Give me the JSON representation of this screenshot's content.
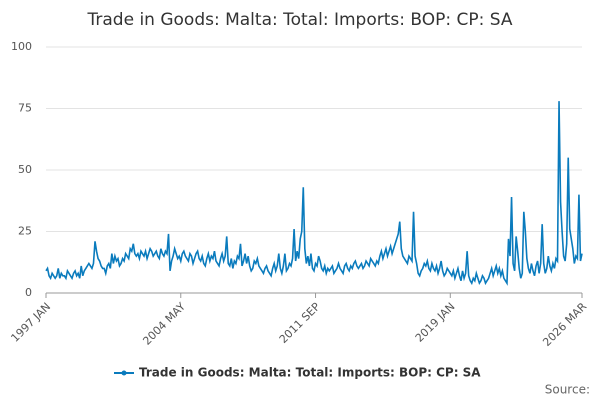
{
  "chart_data": {
    "type": "line",
    "title": "Trade in Goods: Malta: Total: Imports: BOP: CP: SA",
    "categories": [
      "1997 JAN",
      null,
      null,
      null,
      null,
      null,
      null,
      null,
      null,
      null,
      null,
      null,
      null,
      null,
      null,
      null,
      null,
      null,
      null,
      null,
      null,
      null,
      null,
      null,
      null,
      null,
      null,
      null,
      null,
      null,
      null,
      null,
      null,
      null,
      null,
      null,
      null,
      null,
      null,
      null,
      null,
      null,
      null,
      null,
      null,
      null,
      null,
      null,
      null,
      null,
      null,
      null,
      null,
      null,
      null,
      null,
      null,
      null,
      null,
      null,
      null,
      null,
      null,
      null,
      null,
      null,
      null,
      null,
      null,
      null,
      null,
      null,
      null,
      null,
      null,
      null,
      null,
      null,
      null,
      null,
      null,
      null,
      null,
      null,
      null,
      null,
      null,
      null,
      "2004 MAY",
      null,
      null,
      null,
      null,
      null,
      null,
      null,
      null,
      null,
      null,
      null,
      null,
      null,
      null,
      null,
      null,
      null,
      null,
      null,
      null,
      null,
      null,
      null,
      null,
      null,
      null,
      null,
      null,
      null,
      null,
      null,
      null,
      null,
      null,
      null,
      null,
      null,
      null,
      null,
      null,
      null,
      null,
      null,
      null,
      null,
      null,
      null,
      null,
      null,
      null,
      null,
      null,
      null,
      null,
      null,
      null,
      null,
      null,
      null,
      null,
      null,
      null,
      null,
      null,
      null,
      null,
      null,
      null,
      null,
      null,
      null,
      null,
      null,
      null,
      null,
      null,
      null,
      null,
      null,
      null,
      null,
      null,
      null,
      null,
      null,
      null,
      null,
      "2011 SEP",
      null,
      null,
      null,
      null,
      null,
      null,
      null,
      null,
      null,
      null,
      null,
      null,
      null,
      null,
      null,
      null,
      null,
      null,
      null,
      null,
      null,
      null,
      null,
      null,
      null,
      null,
      null,
      null,
      null,
      null,
      null,
      null,
      null,
      null,
      null,
      null,
      null,
      null,
      null,
      null,
      null,
      null,
      null,
      null,
      null,
      null,
      null,
      null,
      null,
      null,
      null,
      null,
      null,
      null,
      null,
      null,
      null,
      null,
      null,
      null,
      null,
      null,
      null,
      null,
      null,
      null,
      null,
      null,
      null,
      null,
      null,
      null,
      null,
      null,
      null,
      null,
      null,
      null,
      null,
      null,
      null,
      null,
      null,
      null,
      null,
      null,
      null,
      "2019 JAN",
      null,
      null,
      null,
      null,
      null,
      null,
      null,
      null,
      null,
      null,
      null,
      null,
      null,
      null,
      null,
      null,
      null,
      null,
      null,
      null,
      null,
      null,
      null,
      null,
      null,
      null,
      null,
      null,
      null,
      null,
      null,
      null,
      null,
      null,
      null,
      null,
      null,
      null,
      null,
      null,
      null,
      null,
      null,
      null,
      null,
      null,
      null,
      null,
      null,
      null,
      null,
      null,
      null,
      null,
      null,
      null,
      null,
      null,
      null,
      null,
      null,
      null,
      null,
      null,
      null,
      null,
      null,
      null,
      null,
      null,
      null,
      null,
      null,
      null,
      null,
      null,
      null,
      null,
      null,
      null,
      null,
      null,
      null,
      null,
      null,
      "2026 MAR"
    ],
    "series": [
      {
        "name": "Trade in Goods: Malta: Total: Imports: BOP: CP: SA",
        "color": "#0a7bbd",
        "values": [
          9,
          10,
          7,
          6,
          8,
          7,
          6,
          7,
          10,
          6,
          8,
          7,
          7,
          6,
          9,
          8,
          7,
          6,
          8,
          9,
          7,
          8,
          6,
          11,
          7,
          9,
          10,
          11,
          12,
          11,
          10,
          12,
          21,
          17,
          14,
          13,
          11,
          10,
          10,
          8,
          11,
          12,
          10,
          16,
          12,
          15,
          13,
          14,
          11,
          12,
          14,
          13,
          16,
          15,
          14,
          18,
          17,
          20,
          16,
          15,
          16,
          14,
          17,
          16,
          15,
          17,
          14,
          16,
          18,
          17,
          15,
          16,
          17,
          15,
          14,
          18,
          16,
          15,
          17,
          16,
          24,
          9,
          13,
          15,
          18,
          16,
          14,
          15,
          13,
          16,
          17,
          15,
          14,
          13,
          16,
          15,
          12,
          14,
          16,
          17,
          14,
          13,
          15,
          12,
          11,
          14,
          16,
          13,
          15,
          14,
          17,
          13,
          12,
          11,
          14,
          16,
          13,
          15,
          23,
          12,
          11,
          14,
          10,
          13,
          12,
          15,
          14,
          20,
          11,
          13,
          16,
          12,
          15,
          11,
          9,
          10,
          13,
          12,
          14,
          11,
          10,
          9,
          8,
          10,
          11,
          9,
          8,
          7,
          10,
          12,
          9,
          11,
          16,
          10,
          8,
          11,
          16,
          9,
          10,
          12,
          11,
          14,
          26,
          13,
          17,
          14,
          22,
          25,
          43,
          18,
          12,
          15,
          11,
          16,
          10,
          9,
          12,
          11,
          15,
          13,
          10,
          9,
          11,
          8,
          10,
          9,
          10,
          11,
          8,
          9,
          10,
          12,
          10,
          9,
          8,
          11,
          12,
          10,
          9,
          11,
          10,
          12,
          13,
          11,
          10,
          11,
          12,
          10,
          11,
          13,
          12,
          11,
          14,
          13,
          12,
          11,
          13,
          12,
          15,
          17,
          14,
          16,
          18,
          15,
          17,
          19,
          16,
          18,
          20,
          22,
          24,
          29,
          18,
          15,
          14,
          13,
          12,
          15,
          14,
          13,
          33,
          15,
          12,
          8,
          7,
          9,
          10,
          12,
          11,
          13,
          10,
          9,
          12,
          10,
          9,
          11,
          8,
          10,
          13,
          9,
          7,
          8,
          10,
          9,
          8,
          7,
          9,
          6,
          8,
          10,
          7,
          5,
          9,
          6,
          8,
          17,
          7,
          5,
          4,
          6,
          5,
          8,
          6,
          4,
          5,
          7,
          6,
          4,
          5,
          6,
          8,
          10,
          7,
          9,
          11,
          8,
          10,
          7,
          9,
          6,
          5,
          4,
          22,
          15,
          39,
          12,
          9,
          23,
          17,
          10,
          6,
          8,
          33,
          25,
          14,
          10,
          8,
          12,
          9,
          7,
          11,
          13,
          8,
          12,
          28,
          12,
          8,
          10,
          15,
          11,
          9,
          12,
          10,
          14,
          13,
          78,
          37,
          25,
          15,
          13,
          20,
          55,
          26,
          22,
          18,
          12,
          15,
          14,
          40,
          13,
          16
        ]
      }
    ],
    "ylim": [
      0,
      100
    ],
    "yticks": [
      0,
      25,
      50,
      75,
      100
    ],
    "grid": true,
    "legend": "bottom",
    "source": "Source:"
  }
}
